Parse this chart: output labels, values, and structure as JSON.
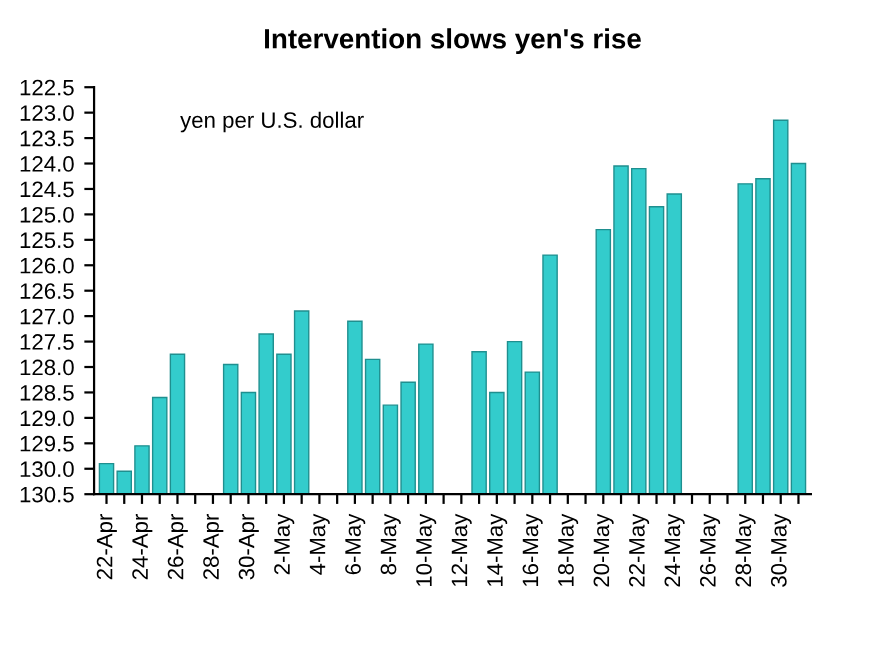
{
  "chart_data": {
    "type": "bar",
    "title": "Intervention slows yen's rise",
    "annotations": [
      "yen per U.S. dollar"
    ],
    "categories": [
      "22-Apr",
      null,
      "24-Apr",
      null,
      "26-Apr",
      null,
      "28-Apr",
      null,
      "30-Apr",
      null,
      "2-May",
      null,
      "4-May",
      null,
      "6-May",
      null,
      "8-May",
      null,
      "10-May",
      null,
      "12-May",
      null,
      "14-May",
      null,
      "16-May",
      null,
      "18-May",
      null,
      "20-May",
      null,
      "22-May",
      null,
      "24-May",
      null,
      "26-May",
      null,
      "28-May",
      null,
      "30-May",
      null
    ],
    "values": [
      -0.6,
      -0.45,
      -0.95,
      -1.9,
      -2.75,
      null,
      null,
      -2.55,
      -2.0,
      -3.15,
      -2.75,
      -3.6,
      null,
      null,
      -3.4,
      -2.65,
      -1.75,
      -2.2,
      -2.95,
      null,
      null,
      -2.8,
      -2.0,
      -3.0,
      -2.4,
      -4.7,
      null,
      null,
      -5.2,
      -6.45,
      -6.4,
      -5.65,
      -5.9,
      null,
      null,
      null,
      -6.1,
      -6.2,
      -7.35,
      -6.5
    ],
    "base": [
      130.5,
      130.5,
      130.5,
      130.5,
      130.5,
      null,
      null,
      130.5,
      130.5,
      130.5,
      130.5,
      130.5,
      null,
      null,
      130.5,
      130.5,
      130.5,
      130.5,
      130.5,
      null,
      null,
      130.5,
      130.5,
      130.5,
      130.5,
      130.5,
      null,
      null,
      130.5,
      130.5,
      130.5,
      130.5,
      130.5,
      null,
      null,
      null,
      130.5,
      130.5,
      130.5,
      130.5
    ],
    "color": "#33cccc",
    "ylim": [
      130.5,
      122.5
    ],
    "yticks": [
      {
        "value": 122.5,
        "label": "122.5"
      },
      {
        "value": 123,
        "label": "123.0"
      },
      {
        "value": 123.5,
        "label": "123.5"
      },
      {
        "value": 124,
        "label": "124.0"
      },
      {
        "value": 124.5,
        "label": "124.5"
      },
      {
        "value": 125,
        "label": "125.0"
      },
      {
        "value": 125.5,
        "label": "125.5"
      },
      {
        "value": 126,
        "label": "126.0"
      },
      {
        "value": 126.5,
        "label": "126.5"
      },
      {
        "value": 127,
        "label": "127.0"
      },
      {
        "value": 127.5,
        "label": "127.5"
      },
      {
        "value": 128,
        "label": "128.0"
      },
      {
        "value": 128.5,
        "label": "128.5"
      },
      {
        "value": 129,
        "label": "129.0"
      },
      {
        "value": 129.5,
        "label": "129.5"
      },
      {
        "value": 130,
        "label": "130.0"
      },
      {
        "value": 130.5,
        "label": "130.5"
      }
    ],
    "grid": false,
    "legend": false
  }
}
